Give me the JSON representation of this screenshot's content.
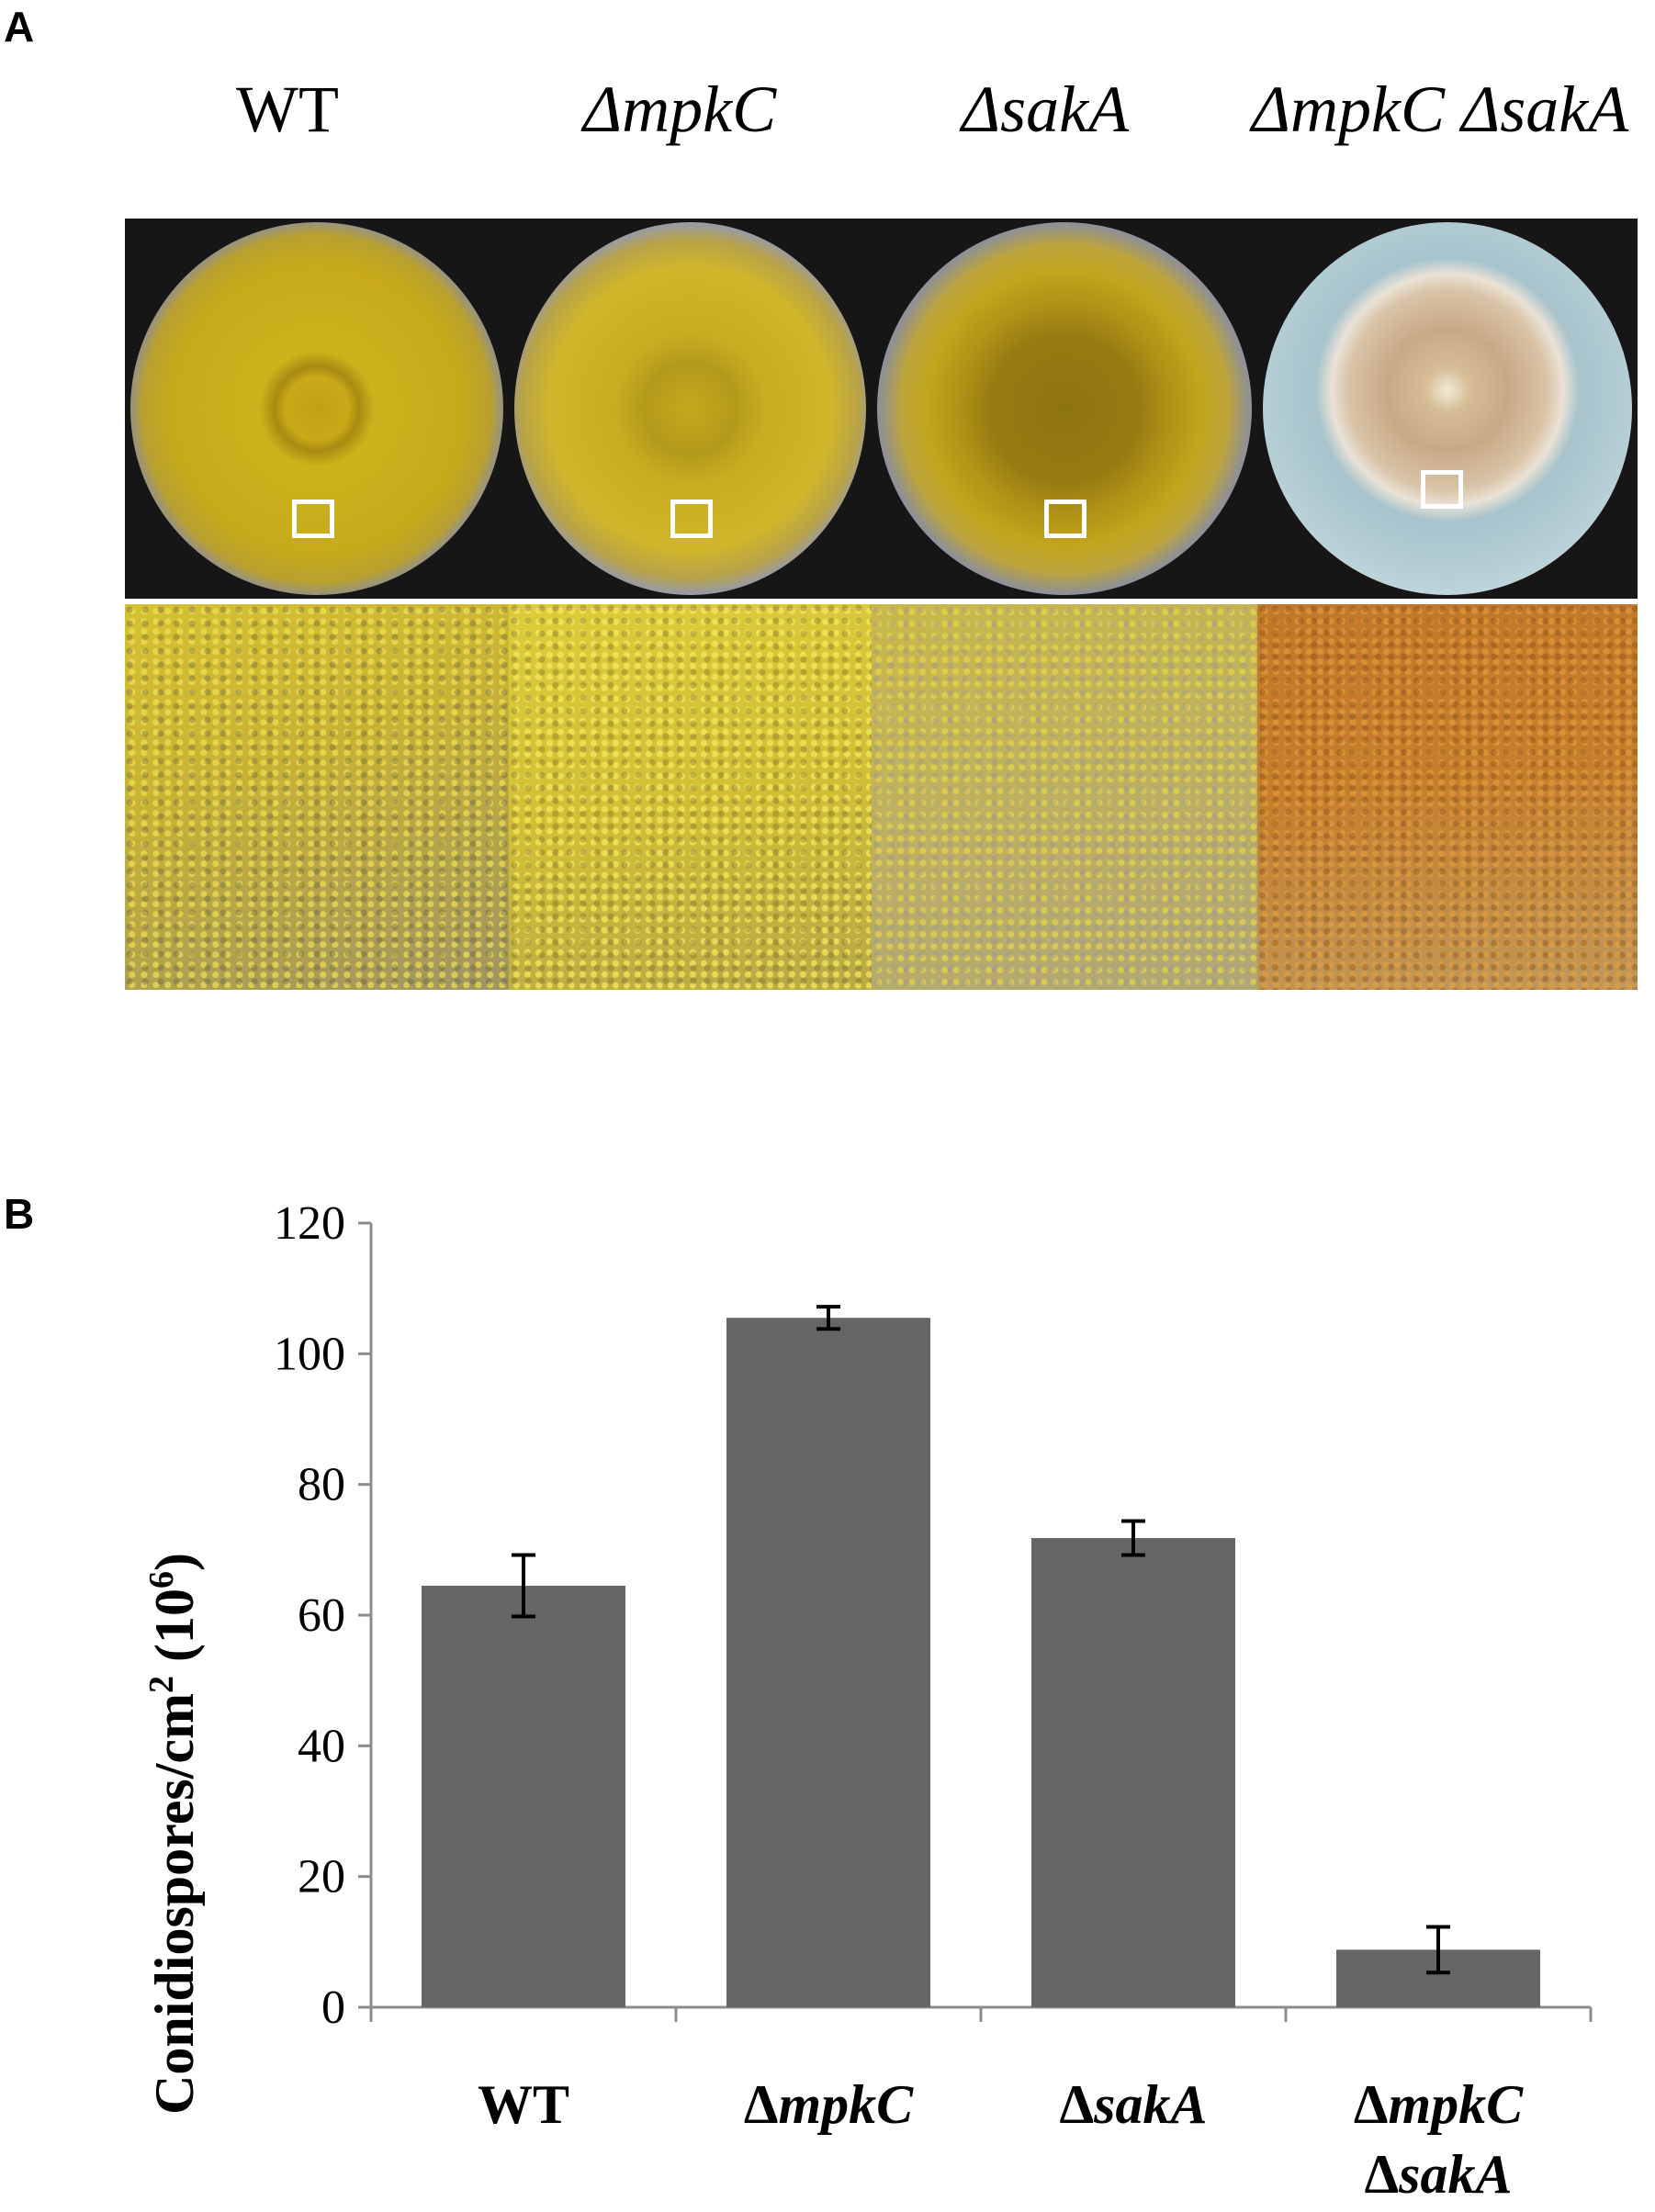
{
  "figure": {
    "panel_a_letter": "A",
    "panel_b_letter": "B"
  },
  "panel_a": {
    "strain_labels": [
      {
        "text": "WT",
        "italic": false
      },
      {
        "text": "ΔmpkC",
        "italic": true
      },
      {
        "text": "ΔsakA",
        "italic": true
      },
      {
        "text": "ΔmpkC ΔsakA",
        "italic": true
      }
    ],
    "colors": {
      "colony_yellow": "#c8a81a",
      "colony_center_olive": "#9a7c10",
      "colony_double_mutant": "#d2b48c",
      "conidia_yellow": "#d8c23a",
      "conidia_orange": "#c47a22",
      "dish_background": "#161616",
      "roi_box": "#ffffff"
    }
  },
  "chart_data": {
    "type": "bar",
    "categories": [
      {
        "parts": [
          {
            "text": "WT",
            "italic": false
          }
        ]
      },
      {
        "parts": [
          {
            "text": "Δ",
            "italic": false
          },
          {
            "text": "mpkC",
            "italic": true
          }
        ]
      },
      {
        "parts": [
          {
            "text": "Δ",
            "italic": false
          },
          {
            "text": "sakA",
            "italic": true
          }
        ]
      },
      {
        "parts": [
          {
            "text": "Δ",
            "italic": false
          },
          {
            "text": "mpkC",
            "italic": true
          }
        ],
        "line2": [
          {
            "text": "Δ",
            "italic": false
          },
          {
            "text": "sakA",
            "italic": true
          }
        ]
      }
    ],
    "values": [
      64.5,
      105.5,
      71.8,
      8.8
    ],
    "errors": [
      4.7,
      1.7,
      2.6,
      3.5
    ],
    "ylabel": "Conidiospores/cm² (10⁶)",
    "ylabel_main": "Conidiospores/cm",
    "ylabel_sup1": "2",
    "ylabel_mid": " (10",
    "ylabel_sup2": "6",
    "ylabel_end": ")",
    "ylim": [
      0,
      120
    ],
    "yticks": [
      "0",
      "20",
      "40",
      "60",
      "80",
      "100",
      "120"
    ],
    "grid": false,
    "bar_color": "#666666",
    "axis_color": "#8c8c8c",
    "error_color": "#000000"
  }
}
